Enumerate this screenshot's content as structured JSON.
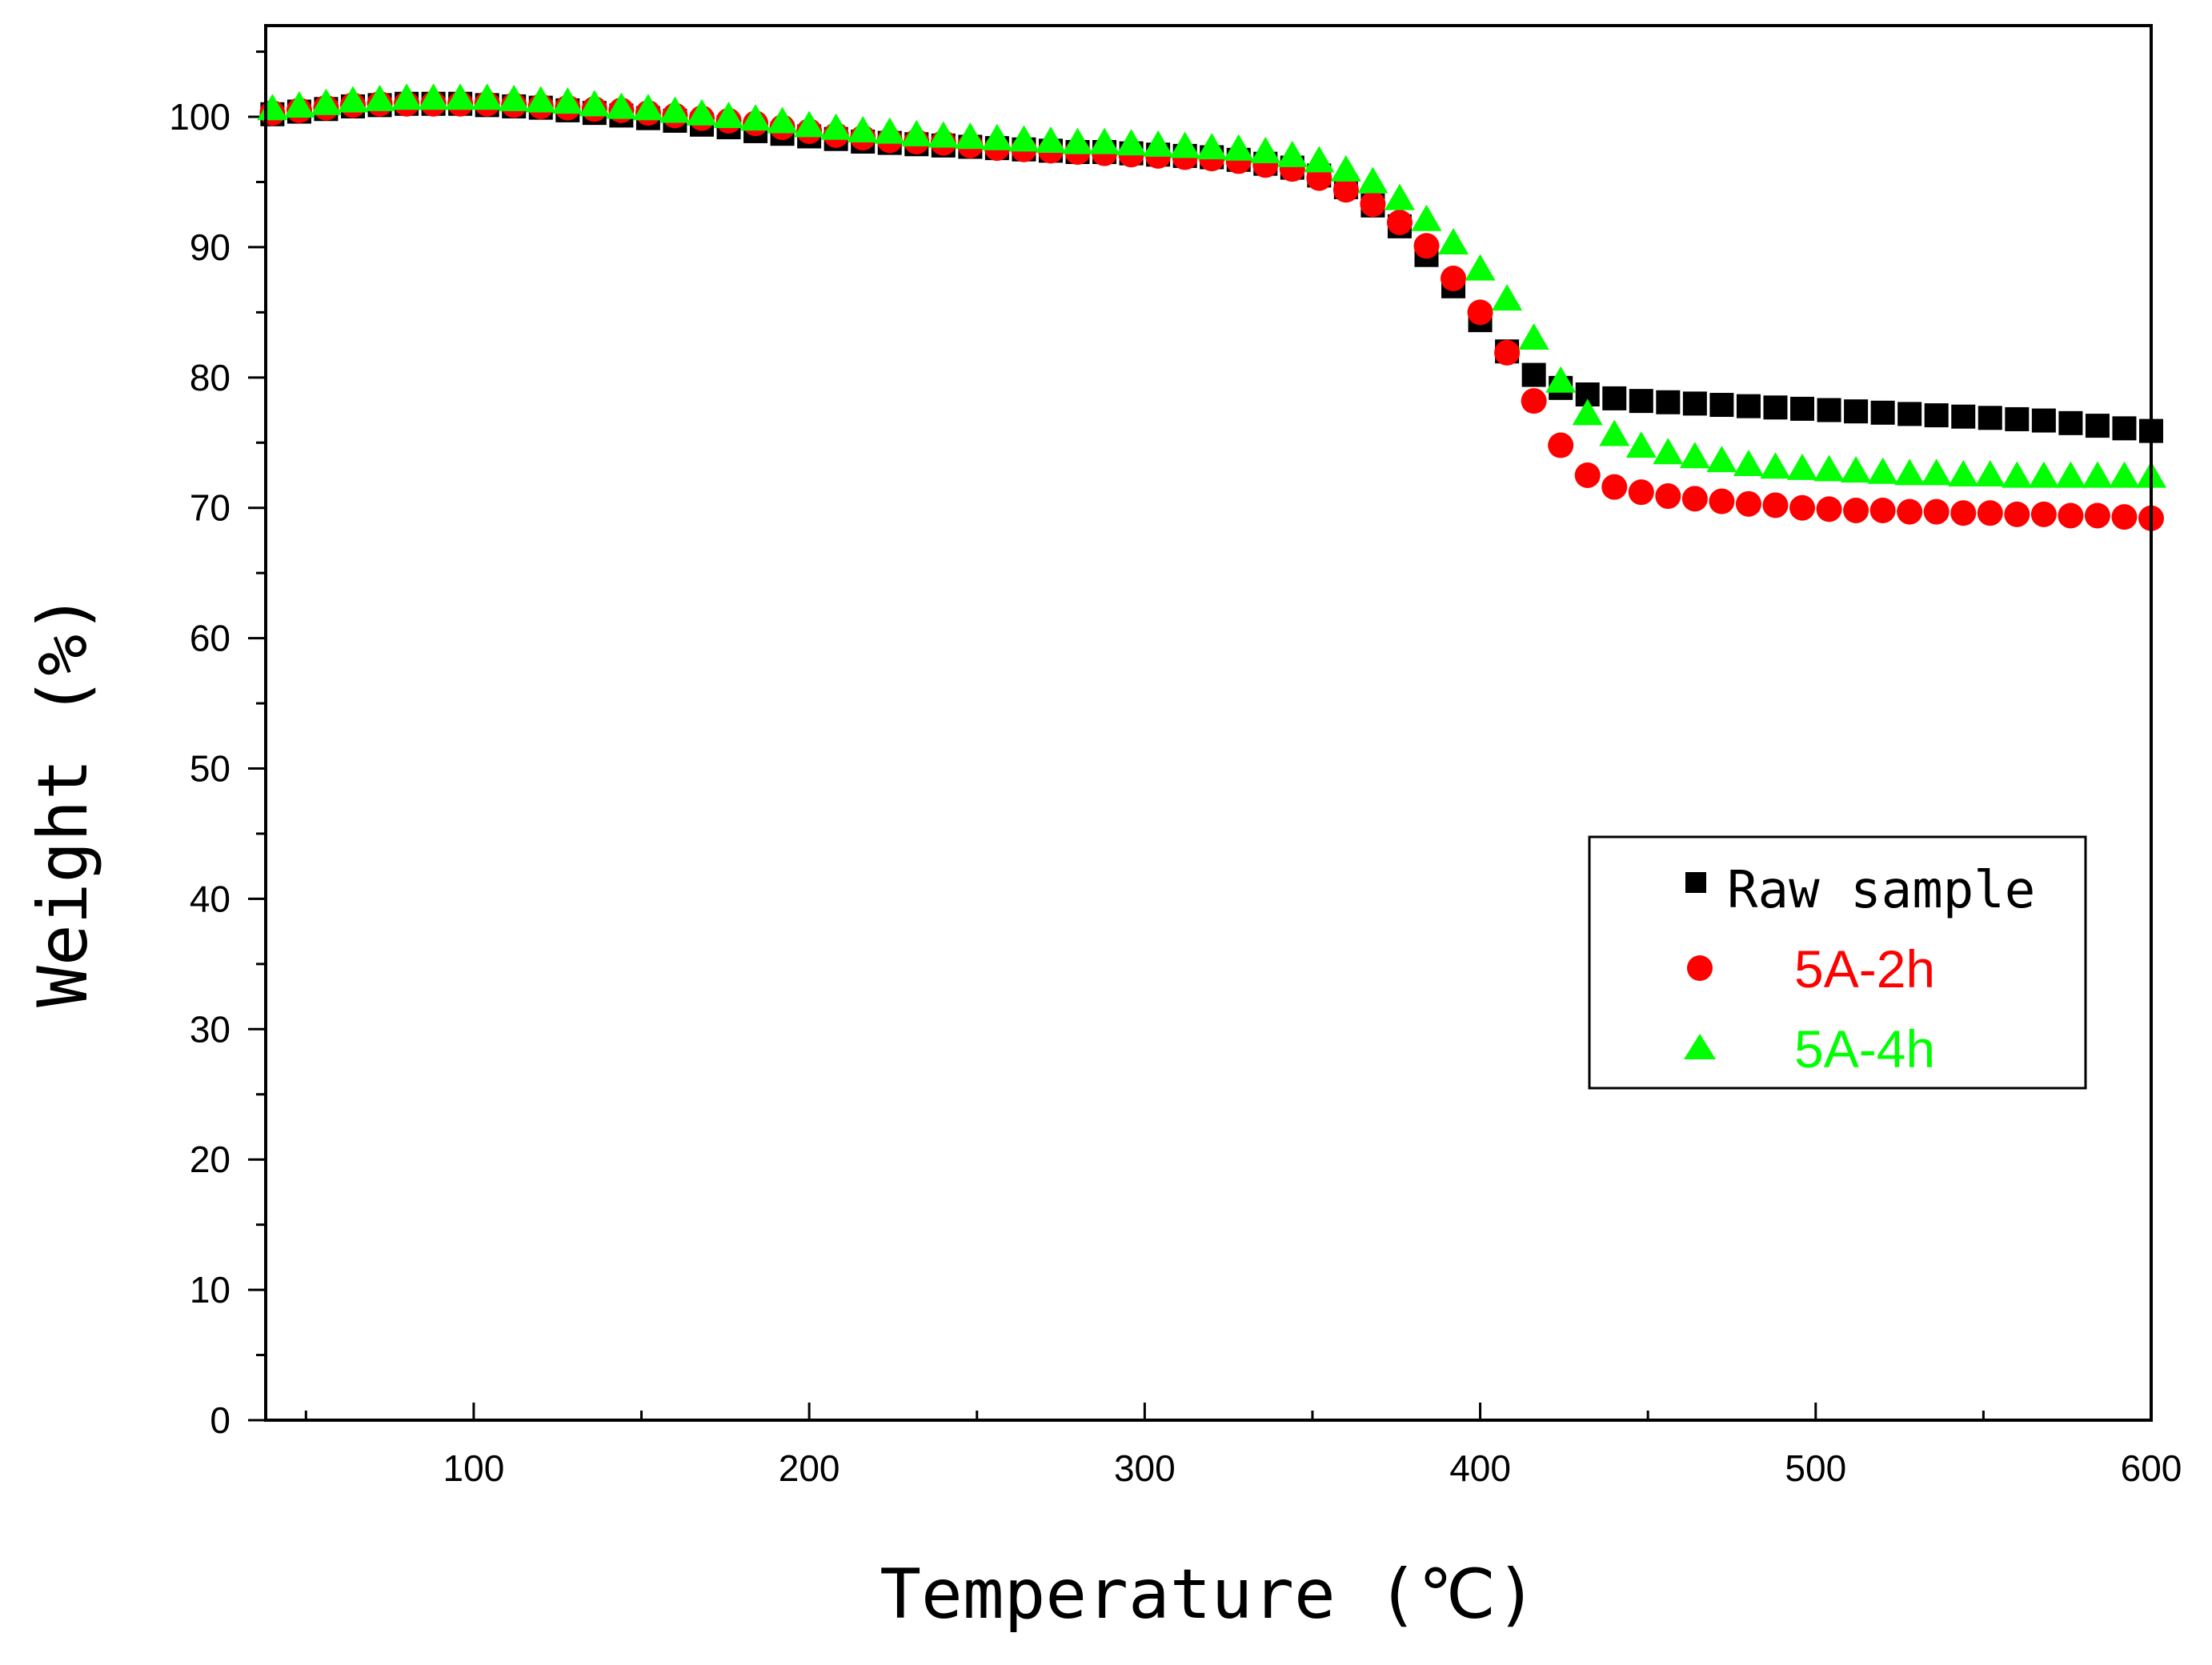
{
  "chart_data": {
    "type": "scatter",
    "title": "",
    "xlabel": "Temperature (℃)",
    "ylabel": "Weight (%)",
    "xlim": [
      38,
      600
    ],
    "ylim": [
      0,
      107
    ],
    "xticks": [
      100,
      200,
      300,
      400,
      500,
      600
    ],
    "xtick_labels": [
      "100",
      "200",
      "300",
      "400",
      "500",
      "600"
    ],
    "yticks": [
      0,
      10,
      20,
      30,
      40,
      50,
      60,
      70,
      80,
      90,
      100
    ],
    "ytick_labels": [
      "0",
      "10",
      "20",
      "30",
      "40",
      "50",
      "60",
      "70",
      "80",
      "90",
      "100"
    ],
    "grid": false,
    "legend_position": "right",
    "x": [
      40,
      48,
      56,
      64,
      72,
      80,
      88,
      96,
      104,
      112,
      120,
      128,
      136,
      144,
      152,
      160,
      168,
      176,
      184,
      192,
      200,
      208,
      216,
      224,
      232,
      240,
      248,
      256,
      264,
      272,
      280,
      288,
      296,
      304,
      312,
      320,
      328,
      336,
      344,
      352,
      360,
      368,
      376,
      384,
      392,
      400,
      408,
      416,
      424,
      432,
      440,
      448,
      456,
      464,
      472,
      480,
      488,
      496,
      504,
      512,
      520,
      528,
      536,
      544,
      552,
      560,
      568,
      576,
      584,
      592,
      600
    ],
    "series": [
      {
        "name": "Raw sample",
        "marker": "square",
        "color": "#000000",
        "values": [
          100.2,
          100.4,
          100.6,
          100.8,
          100.9,
          101.0,
          101.0,
          101.0,
          100.9,
          100.8,
          100.7,
          100.5,
          100.3,
          100.1,
          99.9,
          99.7,
          99.4,
          99.2,
          98.9,
          98.7,
          98.5,
          98.3,
          98.1,
          98.0,
          97.9,
          97.8,
          97.7,
          97.6,
          97.5,
          97.4,
          97.3,
          97.3,
          97.2,
          97.1,
          97.0,
          96.9,
          96.7,
          96.4,
          96.1,
          95.5,
          94.6,
          93.2,
          91.6,
          89.4,
          87.0,
          84.4,
          82.0,
          80.2,
          79.2,
          78.7,
          78.4,
          78.2,
          78.1,
          78.0,
          77.9,
          77.8,
          77.7,
          77.6,
          77.5,
          77.4,
          77.3,
          77.2,
          77.1,
          77.0,
          76.9,
          76.8,
          76.7,
          76.5,
          76.3,
          76.1,
          75.9
        ]
      },
      {
        "name": "5A-2h",
        "marker": "circle",
        "color": "#ff0000",
        "values": [
          100.3,
          100.5,
          100.7,
          100.9,
          101.0,
          101.0,
          101.0,
          101.0,
          101.0,
          100.9,
          100.8,
          100.7,
          100.6,
          100.5,
          100.3,
          100.1,
          99.9,
          99.7,
          99.5,
          99.2,
          98.9,
          98.6,
          98.4,
          98.2,
          98.1,
          98.0,
          97.8,
          97.6,
          97.5,
          97.4,
          97.3,
          97.2,
          97.1,
          97.0,
          96.9,
          96.8,
          96.6,
          96.3,
          96.0,
          95.3,
          94.4,
          93.3,
          91.9,
          90.1,
          87.6,
          85.0,
          81.9,
          78.2,
          74.8,
          72.5,
          71.6,
          71.2,
          70.9,
          70.7,
          70.5,
          70.3,
          70.2,
          70.0,
          69.9,
          69.8,
          69.8,
          69.7,
          69.7,
          69.6,
          69.6,
          69.5,
          69.5,
          69.4,
          69.4,
          69.3,
          69.2
        ]
      },
      {
        "name": "5A-4h",
        "marker": "triangle",
        "color": "#00ff00",
        "values": [
          100.6,
          100.8,
          101.0,
          101.2,
          101.3,
          101.4,
          101.4,
          101.4,
          101.4,
          101.3,
          101.2,
          101.1,
          100.9,
          100.7,
          100.6,
          100.4,
          100.2,
          100.0,
          99.8,
          99.6,
          99.3,
          99.1,
          98.9,
          98.8,
          98.6,
          98.5,
          98.4,
          98.3,
          98.2,
          98.1,
          98.0,
          98.0,
          97.9,
          97.8,
          97.7,
          97.6,
          97.5,
          97.3,
          97.0,
          96.6,
          95.9,
          95.0,
          93.7,
          92.1,
          90.3,
          88.3,
          86.0,
          83.0,
          79.7,
          77.2,
          75.6,
          74.7,
          74.2,
          73.9,
          73.6,
          73.3,
          73.1,
          73.0,
          72.9,
          72.8,
          72.7,
          72.6,
          72.6,
          72.5,
          72.5,
          72.4,
          72.4,
          72.4,
          72.4,
          72.4,
          72.4
        ]
      }
    ]
  }
}
